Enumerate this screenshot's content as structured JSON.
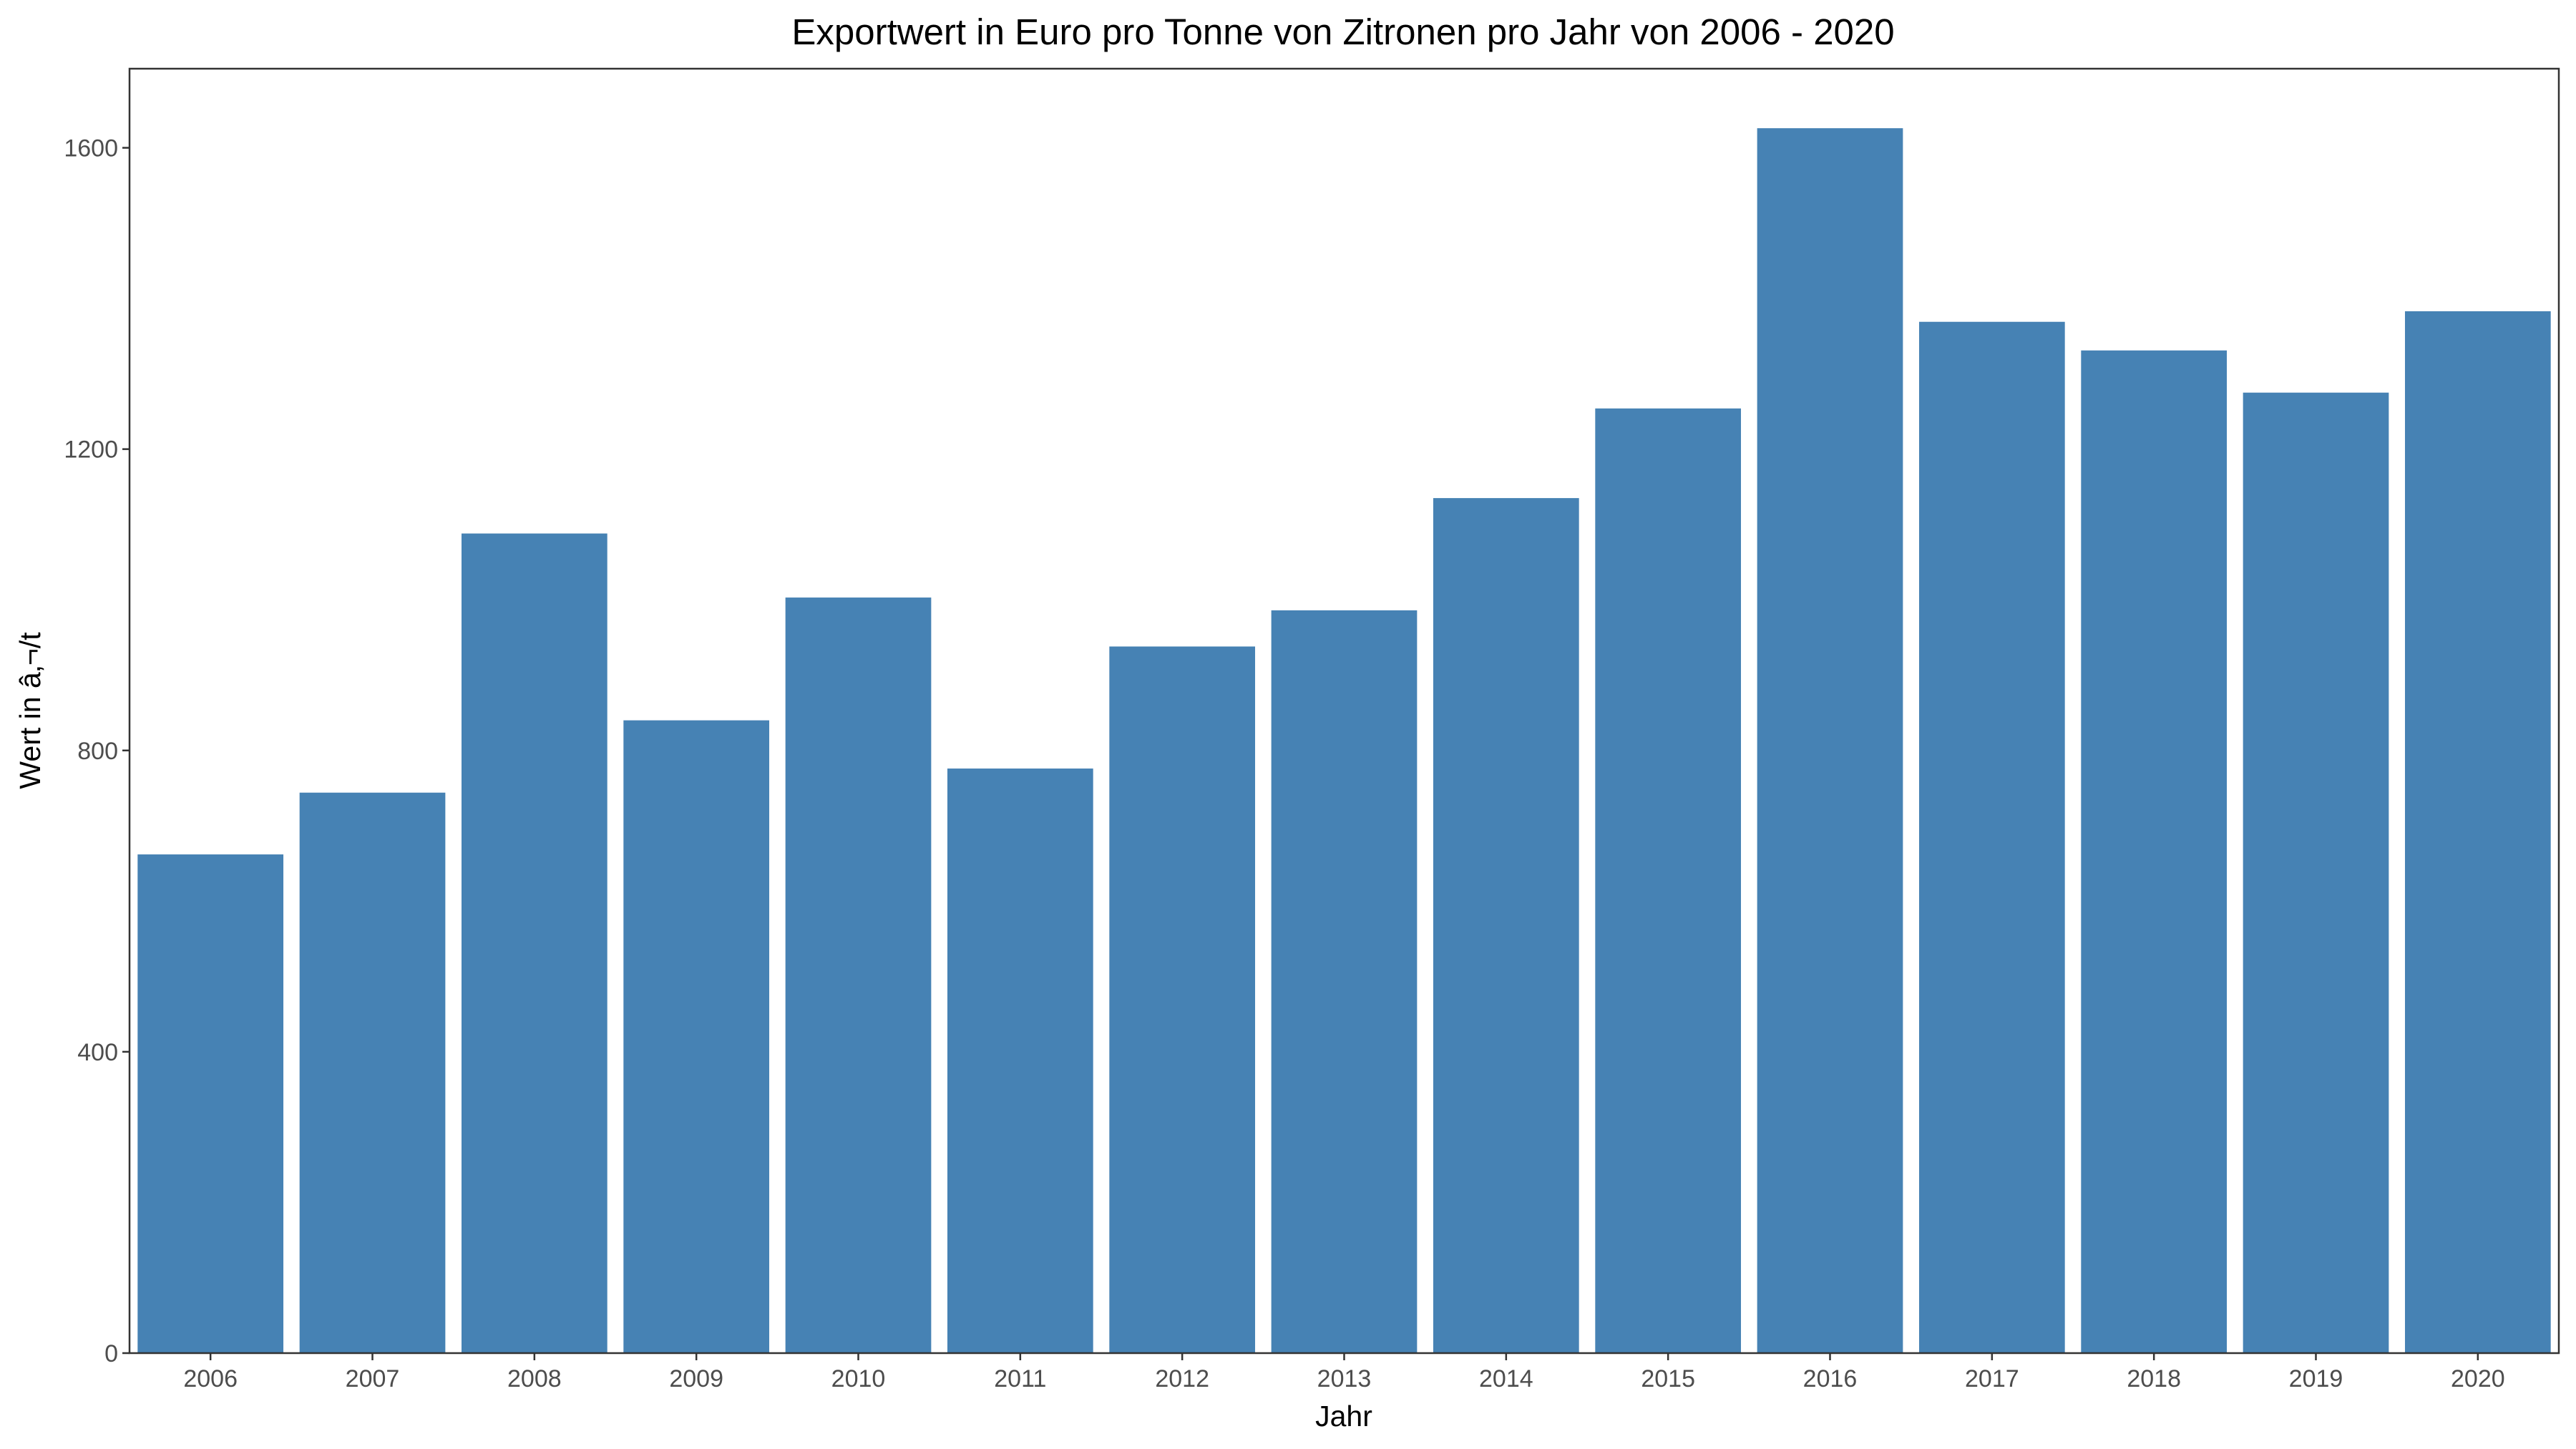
{
  "colors": {
    "bar": "#4682b4",
    "background": "#ffffff",
    "panel_border": "#333333",
    "tick_label": "#4d4d4d"
  },
  "chart_data": {
    "type": "bar",
    "title": "Exportwert in Euro pro Tonne von Zitronen pro Jahr von 2006 - 2020",
    "xlabel": "Jahr",
    "ylabel": "Wert in â‚¬/t",
    "categories": [
      "2006",
      "2007",
      "2008",
      "2009",
      "2010",
      "2011",
      "2012",
      "2013",
      "2014",
      "2015",
      "2016",
      "2017",
      "2018",
      "2019",
      "2020"
    ],
    "values": [
      662,
      744,
      1088,
      840,
      1003,
      776,
      938,
      986,
      1135,
      1254,
      1626,
      1369,
      1331,
      1275,
      1383
    ],
    "yticks": [
      0,
      400,
      800,
      1200,
      1600
    ],
    "ylim": [
      0,
      1705
    ],
    "grid": false,
    "legend": "none"
  }
}
